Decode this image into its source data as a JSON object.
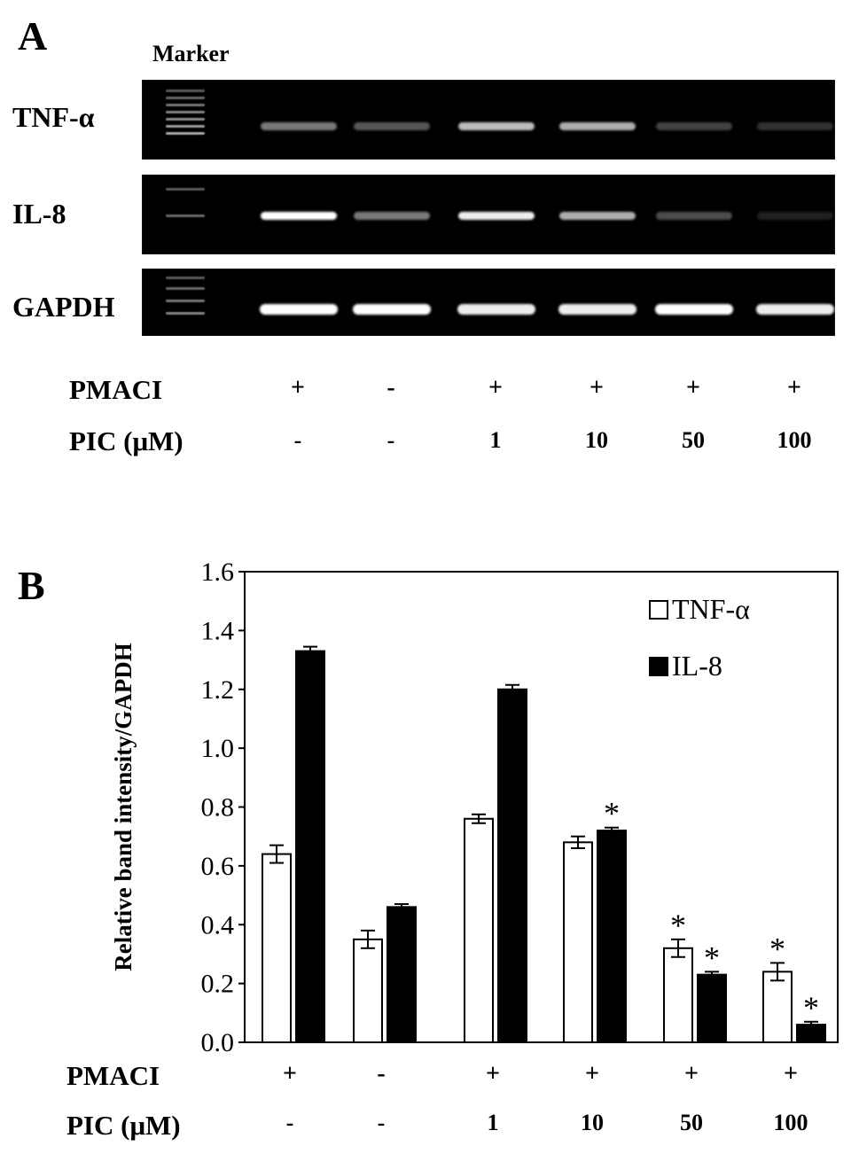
{
  "panels": {
    "a": "A",
    "b": "B"
  },
  "gel": {
    "marker_label": "Marker",
    "genes": [
      "TNF-α",
      "IL-8",
      "GAPDH"
    ],
    "band_intensity": [
      [
        0.55,
        0.4,
        0.8,
        0.75,
        0.3,
        0.2
      ],
      [
        1.0,
        0.55,
        0.95,
        0.75,
        0.35,
        0.08
      ],
      [
        1.0,
        1.0,
        0.95,
        0.95,
        1.0,
        0.95
      ]
    ]
  },
  "conditions": {
    "pmaci_label": "PMACI",
    "pic_label": "PIC (μM)",
    "pmaci": [
      "+",
      "-",
      "+",
      "+",
      "+",
      "+"
    ],
    "pic": [
      "-",
      "-",
      "1",
      "10",
      "50",
      "100"
    ]
  },
  "chart_data": {
    "type": "bar",
    "ylabel": "Relative band intensity/GAPDH",
    "ylim": [
      0,
      1.6
    ],
    "yticks": [
      "0.0",
      "0.2",
      "0.4",
      "0.6",
      "0.8",
      "1.0",
      "1.2",
      "1.4",
      "1.6"
    ],
    "legend_position": "top-right",
    "series": [
      {
        "name": "TNF-α",
        "color": "#ffffff",
        "values": [
          0.64,
          0.35,
          0.76,
          0.68,
          0.32,
          0.24
        ],
        "errors": [
          0.03,
          0.03,
          0.015,
          0.02,
          0.03,
          0.03
        ],
        "significant": [
          false,
          false,
          false,
          false,
          true,
          true
        ]
      },
      {
        "name": "IL-8",
        "color": "#000000",
        "values": [
          1.33,
          0.46,
          1.2,
          0.72,
          0.23,
          0.06
        ],
        "errors": [
          0.015,
          0.01,
          0.015,
          0.01,
          0.01,
          0.01
        ],
        "significant": [
          false,
          false,
          false,
          true,
          true,
          true
        ]
      }
    ],
    "significance_mark": "*"
  }
}
